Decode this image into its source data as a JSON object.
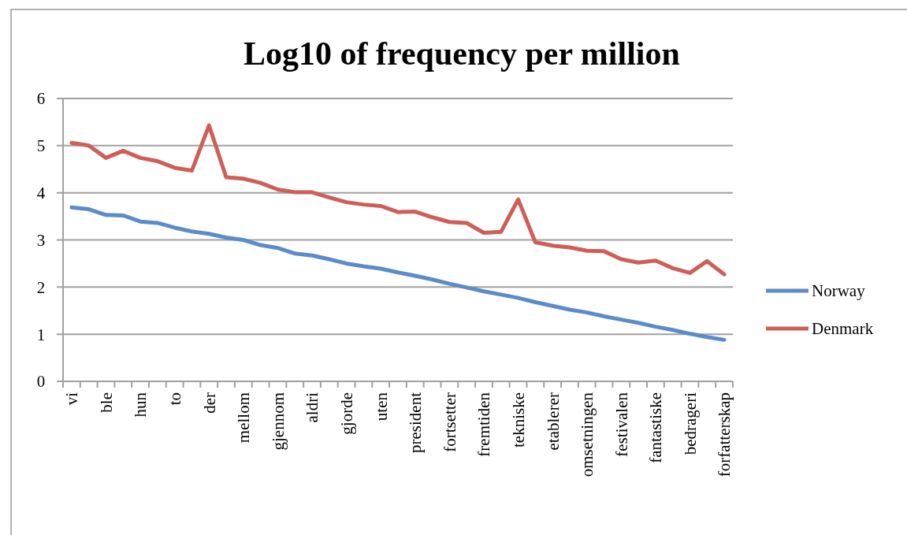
{
  "chart_data": {
    "type": "line",
    "title": "Log10 of frequency per million",
    "categories": [
      "vi",
      null,
      "ble",
      null,
      "hun",
      null,
      "to",
      null,
      "der",
      null,
      "mellom",
      null,
      "gjennom",
      null,
      "aldri",
      null,
      "gjorde",
      null,
      "uten",
      null,
      "president",
      null,
      "fortsetter",
      null,
      "fremtiden",
      null,
      "tekniske",
      null,
      "etablerer",
      null,
      "omsetningen",
      null,
      "festivalen",
      null,
      "fantastiske",
      null,
      "bedrageri",
      null,
      "forfatterskap"
    ],
    "series": [
      {
        "name": "Norway",
        "color": "#5b8cc8",
        "values": [
          3.69,
          3.65,
          3.53,
          3.52,
          3.39,
          3.36,
          3.26,
          3.18,
          3.13,
          3.05,
          3.0,
          2.89,
          2.83,
          2.71,
          2.67,
          2.59,
          2.5,
          2.44,
          2.39,
          2.31,
          2.24,
          2.16,
          2.07,
          1.99,
          1.91,
          1.84,
          1.77,
          1.68,
          1.6,
          1.52,
          1.46,
          1.38,
          1.31,
          1.24,
          1.16,
          1.09,
          1.01,
          0.94,
          0.88
        ]
      },
      {
        "name": "Denmark",
        "color": "#cd5f58",
        "values": [
          5.06,
          5.0,
          4.74,
          4.89,
          4.74,
          4.67,
          4.53,
          4.47,
          5.43,
          4.33,
          4.3,
          4.21,
          4.07,
          4.01,
          4.01,
          3.9,
          3.8,
          3.75,
          3.72,
          3.59,
          3.6,
          3.48,
          3.38,
          3.36,
          3.15,
          3.17,
          3.86,
          2.95,
          2.88,
          2.84,
          2.77,
          2.76,
          2.59,
          2.52,
          2.56,
          2.4,
          2.3,
          2.55,
          2.27
        ]
      }
    ],
    "ylim": [
      0,
      6
    ],
    "yticks": [
      0,
      1,
      2,
      3,
      4,
      5,
      6
    ],
    "grid": "y",
    "legend": "right",
    "marker": "none",
    "line_style": "solid"
  }
}
